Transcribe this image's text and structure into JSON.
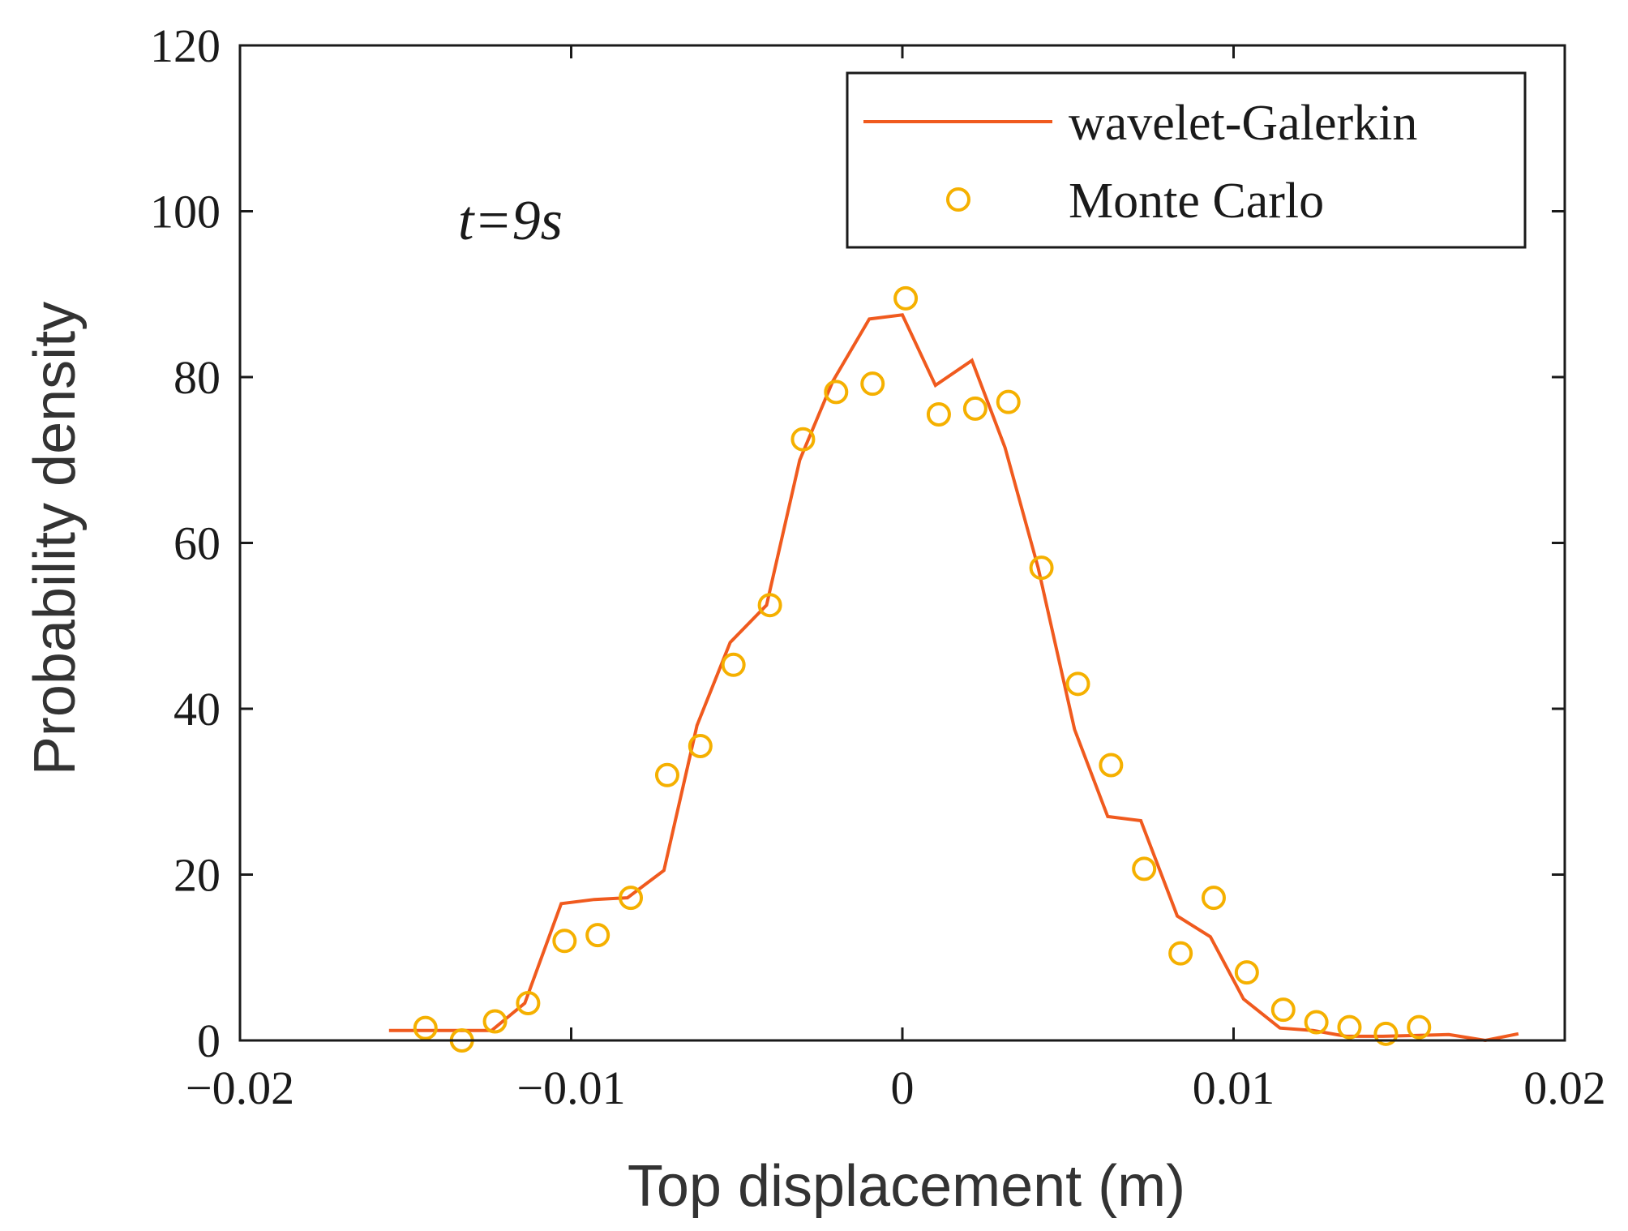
{
  "colors": {
    "line": "#F05A1E",
    "marker": "#F5B000",
    "axis": "#1a1a1a",
    "background": "#ffffff"
  },
  "chart_data": {
    "type": "line",
    "title": "",
    "xlabel": "Top displacement (m)",
    "ylabel": "Probability density",
    "xlim": [
      -0.02,
      0.02
    ],
    "ylim": [
      0,
      120
    ],
    "grid": false,
    "legend_position": "top-right",
    "x_tick_values": [
      -0.02,
      -0.01,
      0,
      0.01,
      0.02
    ],
    "x_tick_labels": [
      "−0.02",
      "−0.01",
      "0",
      "0.01",
      "0.02"
    ],
    "y_tick_values": [
      0,
      20,
      40,
      60,
      80,
      100,
      120
    ],
    "y_tick_labels": [
      "0",
      "20",
      "40",
      "60",
      "80",
      "100",
      "120"
    ],
    "annotation": "t=9s",
    "series": [
      {
        "name": "wavelet-Galerkin",
        "style": "line",
        "x": [
          -0.0155,
          -0.0145,
          -0.0134,
          -0.0124,
          -0.0114,
          -0.0103,
          -0.0093,
          -0.0083,
          -0.0072,
          -0.0062,
          -0.0052,
          -0.0041,
          -0.0031,
          -0.0021,
          -0.001,
          0.0,
          0.001,
          0.0021,
          0.0031,
          0.0041,
          0.0052,
          0.0062,
          0.0072,
          0.0083,
          0.0093,
          0.0103,
          0.0114,
          0.0124,
          0.0134,
          0.0145,
          0.0155,
          0.0165,
          0.0176,
          0.0186
        ],
        "y": [
          1.2,
          1.2,
          1.2,
          1.2,
          4.5,
          16.5,
          17.0,
          17.2,
          20.5,
          38.0,
          48.0,
          52.5,
          70.0,
          79.5,
          87.0,
          87.5,
          79.0,
          82.0,
          71.5,
          57.0,
          37.5,
          27.0,
          26.5,
          15.0,
          12.5,
          5.0,
          1.5,
          1.2,
          0.5,
          0.5,
          0.6,
          0.7,
          0.0,
          0.8
        ]
      },
      {
        "name": "Monte Carlo",
        "style": "marker",
        "x": [
          -0.0144,
          -0.0133,
          -0.0123,
          -0.0113,
          -0.0102,
          -0.0092,
          -0.0082,
          -0.0071,
          -0.0061,
          -0.0051,
          -0.004,
          -0.003,
          -0.002,
          -0.0009,
          0.0001,
          0.0011,
          0.0022,
          0.0032,
          0.0042,
          0.0053,
          0.0063,
          0.0073,
          0.0084,
          0.0094,
          0.0104,
          0.0115,
          0.0125,
          0.0135,
          0.0146,
          0.0156
        ],
        "y": [
          1.5,
          0.0,
          2.3,
          4.5,
          12.0,
          12.7,
          17.2,
          32.0,
          35.5,
          45.3,
          52.5,
          72.5,
          78.2,
          79.2,
          89.5,
          75.5,
          76.2,
          77.0,
          57.0,
          43.0,
          33.2,
          20.7,
          10.5,
          17.2,
          8.2,
          3.7,
          2.2,
          1.6,
          0.8,
          1.6
        ]
      }
    ]
  }
}
